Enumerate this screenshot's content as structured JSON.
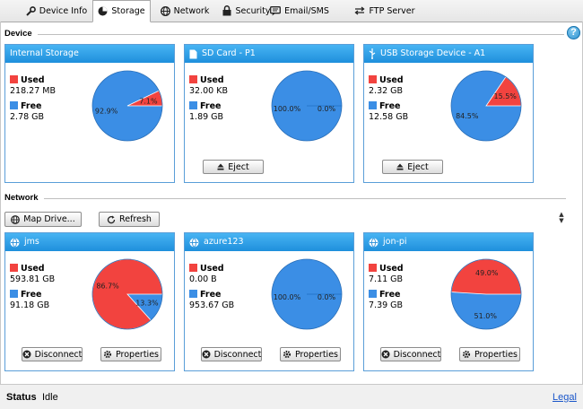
{
  "tabs": [
    {
      "label": "Device Info",
      "icon": "wrench-icon",
      "active": false
    },
    {
      "label": "Storage",
      "icon": "pie-chart-icon",
      "active": true
    },
    {
      "label": "Network",
      "icon": "globe-icon",
      "active": false
    },
    {
      "label": "Security",
      "icon": "lock-icon",
      "active": false
    },
    {
      "label": "Email/SMS",
      "icon": "chat-icon",
      "active": false
    },
    {
      "label": "FTP Server",
      "icon": "transfer-arrows-icon",
      "active": false
    }
  ],
  "device": {
    "title": "Device",
    "help": "?",
    "panels": [
      {
        "title": "Internal Storage",
        "used_label": "Used",
        "used": "218.27 MB",
        "free_label": "Free",
        "free": "2.78 GB",
        "used_pct": 7.1,
        "used_pct_label": "7.1%",
        "free_pct_label": "92.9%",
        "eject_label": ""
      },
      {
        "title": "SD Card - P1",
        "used_label": "Used",
        "used": "32.00 KB",
        "free_label": "Free",
        "free": "1.89 GB",
        "used_pct": 0,
        "used_pct_label": "0.0%",
        "free_pct_label": "100.0%",
        "eject_label": "Eject"
      },
      {
        "title": "USB Storage Device - A1",
        "used_label": "Used",
        "used": "2.32 GB",
        "free_label": "Free",
        "free": "12.58 GB",
        "used_pct": 15.5,
        "used_pct_label": "15.5%",
        "free_pct_label": "84.5%",
        "eject_label": "Eject"
      }
    ]
  },
  "network": {
    "title": "Network",
    "map_drive_label": "Map Drive...",
    "refresh_label": "Refresh",
    "panels": [
      {
        "title": "jms",
        "used_label": "Used",
        "used": "593.81 GB",
        "free_label": "Free",
        "free": "91.18 GB",
        "used_pct": 86.7,
        "used_pct_label": "86.7%",
        "free_pct_label": "13.3%",
        "disconnect_label": "Disconnect",
        "properties_label": "Properties"
      },
      {
        "title": "azure123",
        "used_label": "Used",
        "used": "0.00 B",
        "free_label": "Free",
        "free": "953.67 GB",
        "used_pct": 0,
        "used_pct_label": "0.0%",
        "free_pct_label": "100.0%",
        "disconnect_label": "Disconnect",
        "properties_label": "Properties"
      },
      {
        "title": "jon-pi",
        "used_label": "Used",
        "used": "7.11 GB",
        "free_label": "Free",
        "free": "7.39 GB",
        "used_pct": 49.0,
        "used_pct_label": "49.0%",
        "free_pct_label": "51.0%",
        "disconnect_label": "Disconnect",
        "properties_label": "Properties"
      }
    ]
  },
  "status": {
    "label": "Status",
    "value": "Idle",
    "legal": "Legal"
  },
  "colors": {
    "used": "#f2433f",
    "free": "#3b8ee5",
    "header": "#2a9be6",
    "link": "#1a56c9"
  }
}
